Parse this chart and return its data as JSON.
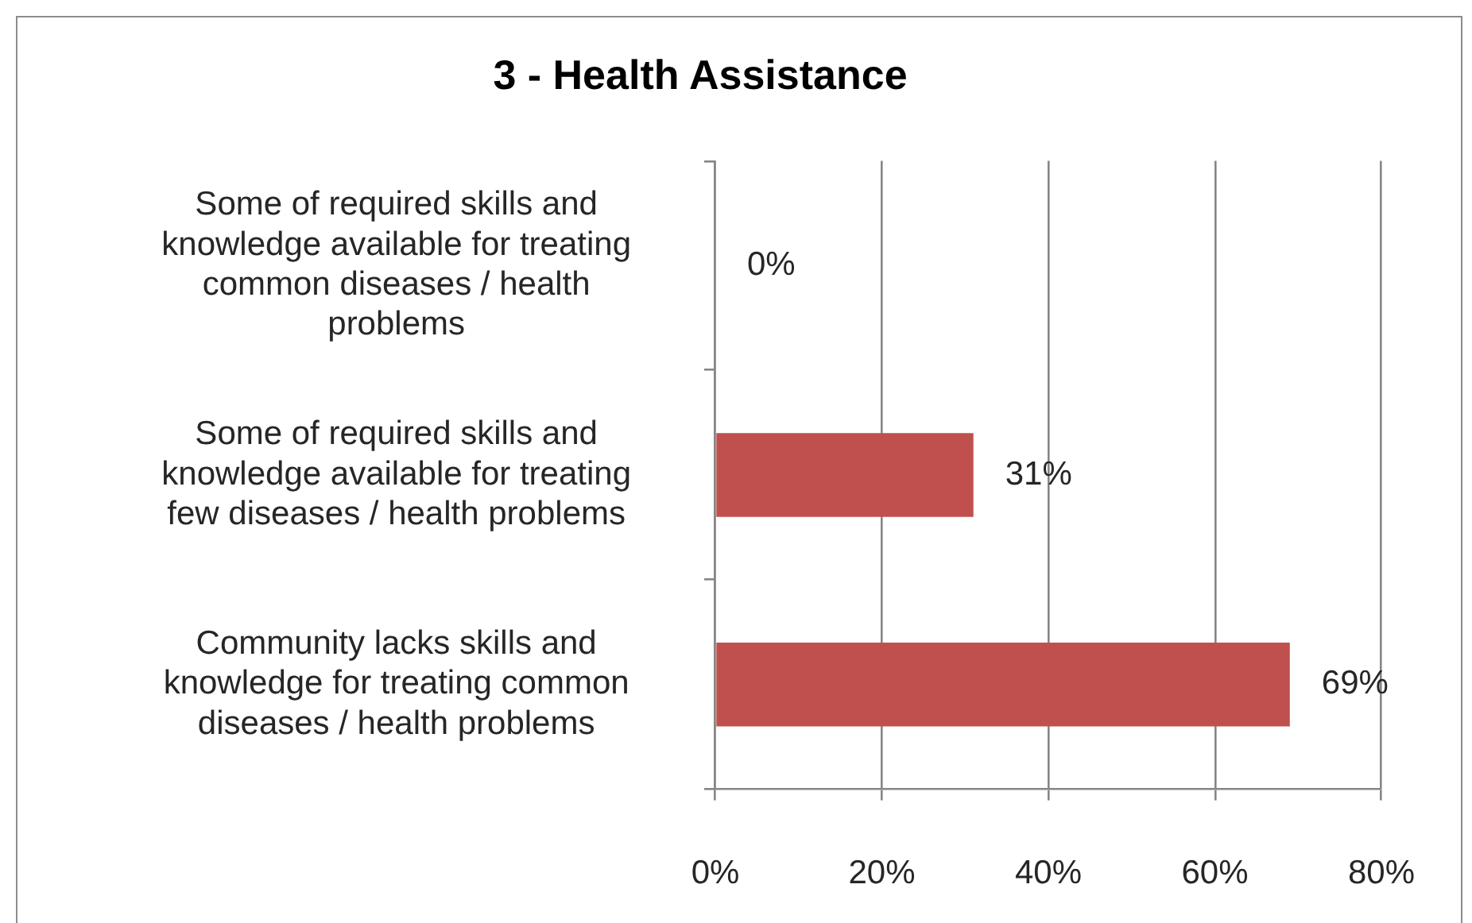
{
  "chart_data": {
    "type": "bar",
    "orientation": "horizontal",
    "title": "3 - Health Assistance",
    "categories": [
      "Some of required skills and knowledge available for treating common diseases / health problems",
      "Some of required skills and knowledge available for treating few diseases / health problems",
      "Community lacks skills and knowledge for treating common diseases / health problems"
    ],
    "values": [
      0,
      31,
      69
    ],
    "color": "#c0504d",
    "value_labels": [
      "0%",
      "31%",
      "69%"
    ],
    "xlim": [
      0,
      80
    ],
    "xticks": [
      {
        "value": 0,
        "label": "0%"
      },
      {
        "value": 20,
        "label": "20%"
      },
      {
        "value": 40,
        "label": "40%"
      },
      {
        "value": 60,
        "label": "60%"
      },
      {
        "value": 80,
        "label": "80%"
      }
    ],
    "grid": "x"
  }
}
